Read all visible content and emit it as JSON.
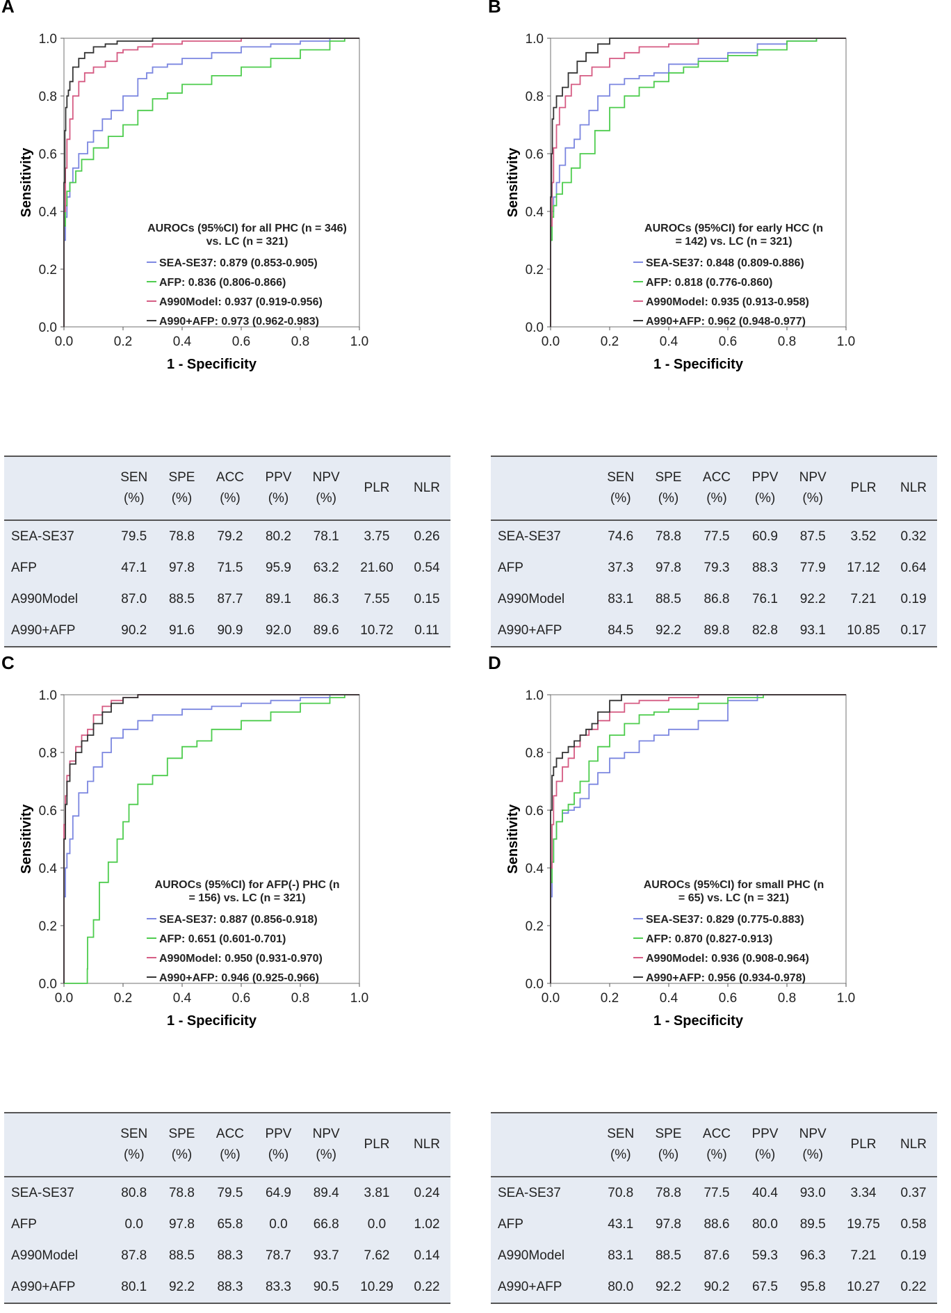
{
  "chart_data": [
    {
      "panel": "A",
      "type": "line",
      "xlabel": "1 - Specificity",
      "ylabel": "Sensitivity",
      "xlim": [
        0,
        1
      ],
      "ylim": [
        0,
        1
      ],
      "ticks": [
        "0.0",
        "0.2",
        "0.4",
        "0.6",
        "0.8",
        "1.0"
      ],
      "legend_title": [
        "AUROCs (95%CI) for all PHC (n = 346)",
        "vs. LC (n = 321)"
      ],
      "series": [
        {
          "name": "SEA-SE37: 0.879 (0.853-0.905)",
          "color": "#7b86e0",
          "x": [
            0,
            0.005,
            0.01,
            0.02,
            0.03,
            0.05,
            0.08,
            0.1,
            0.13,
            0.16,
            0.2,
            0.25,
            0.28,
            0.3,
            0.35,
            0.4,
            0.5,
            0.6,
            0.7,
            0.8,
            0.9,
            0.95,
            1.0
          ],
          "y": [
            0,
            0.3,
            0.38,
            0.45,
            0.5,
            0.55,
            0.6,
            0.64,
            0.68,
            0.72,
            0.75,
            0.8,
            0.86,
            0.88,
            0.9,
            0.91,
            0.93,
            0.95,
            0.97,
            0.98,
            0.99,
            1.0,
            1.0
          ]
        },
        {
          "name": "AFP: 0.836 (0.806-0.866)",
          "color": "#4ccc4c",
          "x": [
            0,
            0.005,
            0.01,
            0.02,
            0.04,
            0.06,
            0.1,
            0.15,
            0.2,
            0.25,
            0.3,
            0.35,
            0.4,
            0.5,
            0.6,
            0.7,
            0.8,
            0.9,
            0.95,
            1.0
          ],
          "y": [
            0,
            0.35,
            0.42,
            0.47,
            0.5,
            0.54,
            0.58,
            0.62,
            0.66,
            0.7,
            0.75,
            0.79,
            0.81,
            0.84,
            0.87,
            0.9,
            0.93,
            0.96,
            0.99,
            1.0
          ]
        },
        {
          "name": "A990Model: 0.937 (0.919-0.956)",
          "color": "#d55a82",
          "x": [
            0,
            0.005,
            0.01,
            0.02,
            0.03,
            0.05,
            0.07,
            0.1,
            0.14,
            0.18,
            0.2,
            0.25,
            0.3,
            0.4,
            0.5,
            0.6,
            0.7,
            0.8,
            0.9,
            1.0
          ],
          "y": [
            0,
            0.4,
            0.55,
            0.65,
            0.72,
            0.8,
            0.85,
            0.88,
            0.9,
            0.92,
            0.95,
            0.96,
            0.97,
            0.98,
            0.99,
            0.99,
            1.0,
            1.0,
            1.0,
            1.0
          ]
        },
        {
          "name": "A990+AFP: 0.973 (0.962-0.983)",
          "color": "#333333",
          "x": [
            0,
            0.003,
            0.006,
            0.01,
            0.015,
            0.02,
            0.03,
            0.05,
            0.07,
            0.1,
            0.14,
            0.18,
            0.22,
            0.3,
            0.4,
            0.5,
            0.6,
            0.8,
            1.0
          ],
          "y": [
            0,
            0.5,
            0.68,
            0.76,
            0.8,
            0.82,
            0.85,
            0.9,
            0.93,
            0.95,
            0.97,
            0.98,
            0.99,
            0.99,
            1.0,
            1.0,
            1.0,
            1.0,
            1.0
          ]
        }
      ]
    },
    {
      "panel": "B",
      "type": "line",
      "xlabel": "1 - Specificity",
      "ylabel": "Sensitivity",
      "xlim": [
        0,
        1
      ],
      "ylim": [
        0,
        1
      ],
      "ticks": [
        "0.0",
        "0.2",
        "0.4",
        "0.6",
        "0.8",
        "1.0"
      ],
      "legend_title": [
        "AUROCs (95%CI) for early HCC (n",
        "= 142) vs. LC (n = 321)"
      ],
      "series": [
        {
          "name": "SEA-SE37: 0.848 (0.809-0.886)",
          "color": "#7b86e0",
          "x": [
            0,
            0.005,
            0.01,
            0.02,
            0.03,
            0.05,
            0.08,
            0.1,
            0.13,
            0.16,
            0.2,
            0.25,
            0.3,
            0.35,
            0.4,
            0.5,
            0.6,
            0.7,
            0.8,
            0.9,
            1.0
          ],
          "y": [
            0,
            0.3,
            0.4,
            0.45,
            0.5,
            0.56,
            0.62,
            0.65,
            0.7,
            0.75,
            0.8,
            0.84,
            0.86,
            0.87,
            0.88,
            0.91,
            0.93,
            0.95,
            0.98,
            0.99,
            1.0
          ]
        },
        {
          "name": "AFP: 0.818 (0.776-0.860)",
          "color": "#4ccc4c",
          "x": [
            0,
            0.005,
            0.01,
            0.02,
            0.04,
            0.07,
            0.1,
            0.15,
            0.2,
            0.25,
            0.3,
            0.35,
            0.4,
            0.45,
            0.5,
            0.6,
            0.7,
            0.8,
            0.9,
            1.0
          ],
          "y": [
            0,
            0.3,
            0.38,
            0.42,
            0.46,
            0.5,
            0.55,
            0.6,
            0.68,
            0.76,
            0.8,
            0.83,
            0.85,
            0.88,
            0.9,
            0.92,
            0.94,
            0.96,
            0.99,
            1.0
          ]
        },
        {
          "name": "A990Model: 0.935 (0.913-0.958)",
          "color": "#d55a82",
          "x": [
            0,
            0.005,
            0.01,
            0.02,
            0.03,
            0.05,
            0.07,
            0.1,
            0.14,
            0.2,
            0.25,
            0.3,
            0.4,
            0.5,
            0.6,
            0.7,
            0.8,
            1.0
          ],
          "y": [
            0,
            0.35,
            0.5,
            0.62,
            0.7,
            0.76,
            0.8,
            0.84,
            0.87,
            0.9,
            0.93,
            0.95,
            0.97,
            0.98,
            1.0,
            1.0,
            1.0,
            1.0
          ]
        },
        {
          "name": "A990+AFP: 0.962 (0.948-0.977)",
          "color": "#333333",
          "x": [
            0,
            0.003,
            0.006,
            0.01,
            0.02,
            0.04,
            0.06,
            0.09,
            0.12,
            0.16,
            0.2,
            0.25,
            0.3,
            0.4,
            0.6,
            0.8,
            1.0
          ],
          "y": [
            0,
            0.45,
            0.6,
            0.72,
            0.76,
            0.8,
            0.83,
            0.88,
            0.92,
            0.95,
            0.98,
            1.0,
            1.0,
            1.0,
            1.0,
            1.0,
            1.0
          ]
        }
      ]
    },
    {
      "panel": "C",
      "type": "line",
      "xlabel": "1 - Specificity",
      "ylabel": "Sensitivity",
      "xlim": [
        0,
        1
      ],
      "ylim": [
        0,
        1
      ],
      "ticks": [
        "0.0",
        "0.2",
        "0.4",
        "0.6",
        "0.8",
        "1.0"
      ],
      "legend_title": [
        "AUROCs (95%CI) for AFP(-) PHC (n",
        "= 156) vs. LC (n = 321)"
      ],
      "series": [
        {
          "name": "SEA-SE37: 0.887 (0.856-0.918)",
          "color": "#7b86e0",
          "x": [
            0,
            0.005,
            0.01,
            0.02,
            0.03,
            0.05,
            0.08,
            0.1,
            0.13,
            0.16,
            0.2,
            0.25,
            0.3,
            0.4,
            0.5,
            0.6,
            0.7,
            0.8,
            0.9,
            1.0
          ],
          "y": [
            0,
            0.3,
            0.4,
            0.45,
            0.5,
            0.58,
            0.66,
            0.7,
            0.75,
            0.8,
            0.85,
            0.88,
            0.91,
            0.93,
            0.95,
            0.96,
            0.97,
            0.98,
            0.99,
            1.0
          ]
        },
        {
          "name": "AFP: 0.651 (0.601-0.701)",
          "color": "#4ccc4c",
          "x": [
            0,
            0.079,
            0.08,
            0.1,
            0.12,
            0.15,
            0.18,
            0.2,
            0.22,
            0.25,
            0.3,
            0.35,
            0.4,
            0.45,
            0.5,
            0.6,
            0.7,
            0.8,
            0.9,
            0.95,
            1.0
          ],
          "y": [
            0,
            0,
            0.05,
            0.16,
            0.22,
            0.35,
            0.42,
            0.5,
            0.56,
            0.62,
            0.69,
            0.72,
            0.78,
            0.82,
            0.84,
            0.88,
            0.91,
            0.94,
            0.97,
            0.99,
            1.0
          ]
        },
        {
          "name": "A990Model: 0.950 (0.931-0.970)",
          "color": "#d55a82",
          "x": [
            0,
            0.005,
            0.01,
            0.02,
            0.04,
            0.06,
            0.08,
            0.1,
            0.13,
            0.16,
            0.2,
            0.25,
            0.3,
            0.4,
            0.5,
            0.7,
            1.0
          ],
          "y": [
            0,
            0.55,
            0.65,
            0.72,
            0.77,
            0.82,
            0.86,
            0.88,
            0.93,
            0.96,
            0.98,
            0.99,
            1.0,
            1.0,
            1.0,
            1.0,
            1.0
          ]
        },
        {
          "name": "A990+AFP: 0.946 (0.925-0.966)",
          "color": "#333333",
          "x": [
            0,
            0.005,
            0.01,
            0.02,
            0.04,
            0.06,
            0.08,
            0.1,
            0.13,
            0.16,
            0.2,
            0.25,
            0.3,
            0.4,
            0.5,
            0.7,
            1.0
          ],
          "y": [
            0,
            0.5,
            0.62,
            0.7,
            0.76,
            0.8,
            0.84,
            0.86,
            0.9,
            0.94,
            0.97,
            0.99,
            1.0,
            1.0,
            1.0,
            1.0,
            1.0
          ]
        }
      ]
    },
    {
      "panel": "D",
      "type": "line",
      "xlabel": "1 - Specificity",
      "ylabel": "Sensitivity",
      "xlim": [
        0,
        1
      ],
      "ylim": [
        0,
        1
      ],
      "ticks": [
        "0.0",
        "0.2",
        "0.4",
        "0.6",
        "0.8",
        "1.0"
      ],
      "legend_title": [
        "AUROCs (95%CI) for small PHC (n",
        "= 65) vs. LC (n = 321)"
      ],
      "series": [
        {
          "name": "SEA-SE37: 0.829 (0.775-0.883)",
          "color": "#7b86e0",
          "x": [
            0,
            0.005,
            0.01,
            0.02,
            0.04,
            0.06,
            0.08,
            0.1,
            0.13,
            0.16,
            0.2,
            0.25,
            0.3,
            0.35,
            0.4,
            0.5,
            0.6,
            0.7,
            0.74,
            1.0
          ],
          "y": [
            0,
            0.3,
            0.42,
            0.5,
            0.56,
            0.59,
            0.6,
            0.61,
            0.64,
            0.69,
            0.73,
            0.78,
            0.8,
            0.84,
            0.86,
            0.88,
            0.91,
            0.98,
            1.0,
            1.0
          ]
        },
        {
          "name": "AFP: 0.870 (0.827-0.913)",
          "color": "#4ccc4c",
          "x": [
            0,
            0.005,
            0.01,
            0.02,
            0.04,
            0.06,
            0.08,
            0.1,
            0.13,
            0.16,
            0.2,
            0.25,
            0.3,
            0.35,
            0.4,
            0.5,
            0.6,
            0.72,
            1.0
          ],
          "y": [
            0,
            0.35,
            0.42,
            0.5,
            0.56,
            0.6,
            0.62,
            0.66,
            0.7,
            0.77,
            0.82,
            0.86,
            0.9,
            0.93,
            0.94,
            0.95,
            0.97,
            0.99,
            1.0
          ]
        },
        {
          "name": "A990Model: 0.936 (0.908-0.964)",
          "color": "#d55a82",
          "x": [
            0,
            0.005,
            0.01,
            0.02,
            0.04,
            0.06,
            0.08,
            0.1,
            0.13,
            0.16,
            0.2,
            0.25,
            0.3,
            0.4,
            0.5,
            0.6,
            1.0
          ],
          "y": [
            0,
            0.4,
            0.55,
            0.65,
            0.7,
            0.75,
            0.78,
            0.82,
            0.86,
            0.88,
            0.91,
            0.94,
            0.97,
            0.98,
            0.99,
            1.0,
            1.0
          ]
        },
        {
          "name": "A990+AFP: 0.956 (0.934-0.978)",
          "color": "#333333",
          "x": [
            0,
            0.005,
            0.01,
            0.02,
            0.04,
            0.06,
            0.08,
            0.1,
            0.12,
            0.14,
            0.16,
            0.2,
            0.24,
            0.27,
            0.3,
            0.4,
            0.6,
            1.0
          ],
          "y": [
            0,
            0.6,
            0.72,
            0.75,
            0.78,
            0.8,
            0.82,
            0.84,
            0.86,
            0.88,
            0.9,
            0.94,
            0.98,
            1.0,
            1.0,
            1.0,
            1.0,
            1.0
          ]
        }
      ]
    }
  ],
  "tables": [
    {
      "headers": [
        "SEN (%)",
        "SPE (%)",
        "ACC (%)",
        "PPV (%)",
        "NPV (%)",
        "PLR",
        "NLR"
      ],
      "rows": [
        {
          "name": "SEA-SE37",
          "values": [
            "79.5",
            "78.8",
            "79.2",
            "80.2",
            "78.1",
            "3.75",
            "0.26"
          ]
        },
        {
          "name": "AFP",
          "values": [
            "47.1",
            "97.8",
            "71.5",
            "95.9",
            "63.2",
            "21.60",
            "0.54"
          ]
        },
        {
          "name": "A990Model",
          "values": [
            "87.0",
            "88.5",
            "87.7",
            "89.1",
            "86.3",
            "7.55",
            "0.15"
          ]
        },
        {
          "name": "A990+AFP",
          "values": [
            "90.2",
            "91.6",
            "90.9",
            "92.0",
            "89.6",
            "10.72",
            "0.11"
          ]
        }
      ]
    },
    {
      "headers": [
        "SEN (%)",
        "SPE (%)",
        "ACC (%)",
        "PPV (%)",
        "NPV (%)",
        "PLR",
        "NLR"
      ],
      "rows": [
        {
          "name": "SEA-SE37",
          "values": [
            "74.6",
            "78.8",
            "77.5",
            "60.9",
            "87.5",
            "3.52",
            "0.32"
          ]
        },
        {
          "name": "AFP",
          "values": [
            "37.3",
            "97.8",
            "79.3",
            "88.3",
            "77.9",
            "17.12",
            "0.64"
          ]
        },
        {
          "name": "A990Model",
          "values": [
            "83.1",
            "88.5",
            "86.8",
            "76.1",
            "92.2",
            "7.21",
            "0.19"
          ]
        },
        {
          "name": "A990+AFP",
          "values": [
            "84.5",
            "92.2",
            "89.8",
            "82.8",
            "93.1",
            "10.85",
            "0.17"
          ]
        }
      ]
    },
    {
      "headers": [
        "SEN (%)",
        "SPE (%)",
        "ACC (%)",
        "PPV (%)",
        "NPV (%)",
        "PLR",
        "NLR"
      ],
      "rows": [
        {
          "name": "SEA-SE37",
          "values": [
            "80.8",
            "78.8",
            "79.5",
            "64.9",
            "89.4",
            "3.81",
            "0.24"
          ]
        },
        {
          "name": "AFP",
          "values": [
            "0.0",
            "97.8",
            "65.8",
            "0.0",
            "66.8",
            "0.0",
            "1.02"
          ]
        },
        {
          "name": "A990Model",
          "values": [
            "87.8",
            "88.5",
            "88.3",
            "78.7",
            "93.7",
            "7.62",
            "0.14"
          ]
        },
        {
          "name": "A990+AFP",
          "values": [
            "80.1",
            "92.2",
            "88.3",
            "83.3",
            "90.5",
            "10.29",
            "0.22"
          ]
        }
      ]
    },
    {
      "headers": [
        "SEN (%)",
        "SPE (%)",
        "ACC (%)",
        "PPV (%)",
        "NPV (%)",
        "PLR",
        "NLR"
      ],
      "rows": [
        {
          "name": "SEA-SE37",
          "values": [
            "70.8",
            "78.8",
            "77.5",
            "40.4",
            "93.0",
            "3.34",
            "0.37"
          ]
        },
        {
          "name": "AFP",
          "values": [
            "43.1",
            "97.8",
            "88.6",
            "80.0",
            "89.5",
            "19.75",
            "0.58"
          ]
        },
        {
          "name": "A990Model",
          "values": [
            "83.1",
            "88.5",
            "87.6",
            "59.3",
            "96.3",
            "7.21",
            "0.19"
          ]
        },
        {
          "name": "A990+AFP",
          "values": [
            "80.0",
            "92.2",
            "90.2",
            "67.5",
            "95.8",
            "10.27",
            "0.22"
          ]
        }
      ]
    }
  ]
}
